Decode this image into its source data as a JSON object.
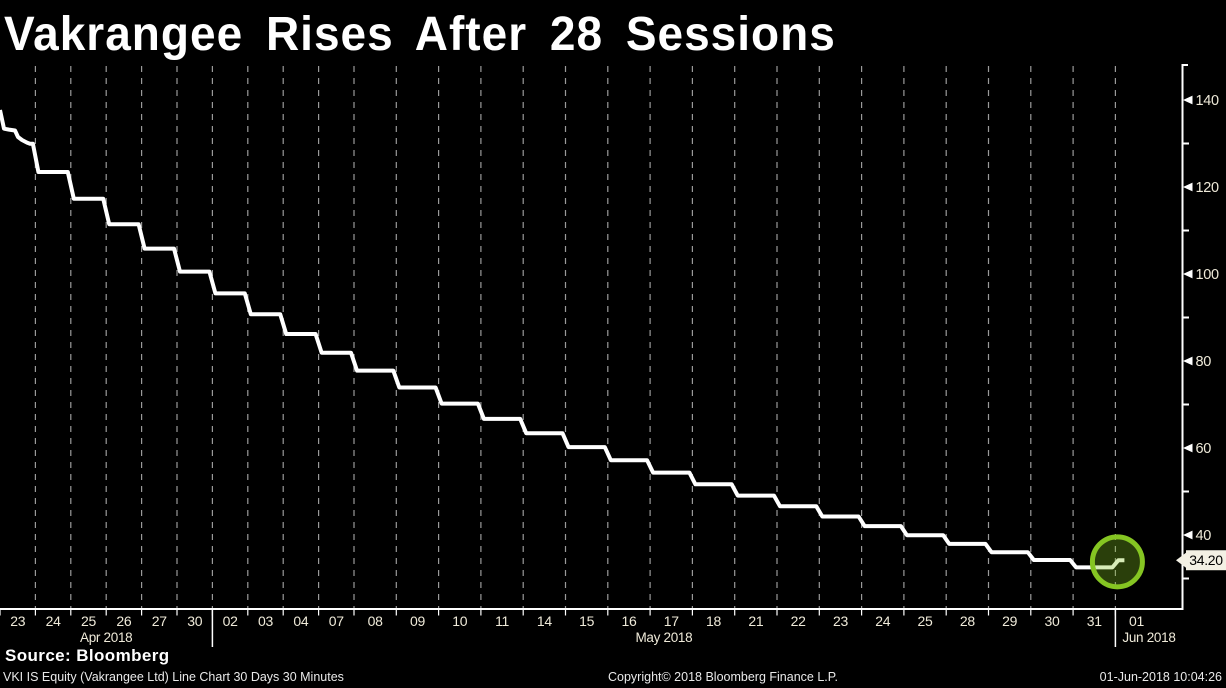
{
  "title": "Vakrangee Rises After 28 Sessions",
  "source_line": "Source: Bloomberg",
  "footer": {
    "left": "VKI IS Equity (Vakrangee Ltd) Line Chart 30 Days 30 Minutes",
    "center": "Copyright© 2018 Bloomberg Finance L.P.",
    "right": "01-Jun-2018 10:04:26"
  },
  "colors": {
    "background": "#000000",
    "line": "#ffffff",
    "grid": "#9a9a9a",
    "axis": "#ffffff",
    "tick_label": "#efead9",
    "highlight_ring": "#85c522",
    "highlight_fill": "rgba(130,196,34,0.32)",
    "price_tag_bg": "#f3f0e4",
    "price_tag_text": "#000000"
  },
  "chart_data": {
    "type": "line",
    "title": "Vakrangee Rises After 28 Sessions",
    "grid": "vertical dashed line at each trading-day boundary, no horizontal gridlines",
    "legend": "none",
    "y_axis": {
      "side": "right",
      "major_ticks": [
        140,
        120,
        100,
        80,
        60,
        40
      ],
      "minor_ticks": [
        130,
        110,
        90,
        70,
        50,
        30
      ],
      "last_price_tag": "34.20"
    },
    "x_axis": {
      "sections": [
        {
          "month": "Apr 2018",
          "days": [
            "23",
            "24",
            "25",
            "26",
            "27",
            "30"
          ]
        },
        {
          "month": "May 2018",
          "days": [
            "02",
            "03",
            "04",
            "07",
            "08",
            "09",
            "10",
            "11",
            "14",
            "15",
            "16",
            "17",
            "18",
            "21",
            "22",
            "23",
            "24",
            "25",
            "28",
            "29",
            "30",
            "31"
          ]
        },
        {
          "month": "Jun 2018",
          "days": [
            "01"
          ]
        }
      ]
    },
    "series": [
      {
        "name": "VKI IS Equity (Vakrangee Ltd) last price",
        "closes": [
          129.95,
          123.45,
          117.3,
          111.45,
          105.85,
          100.55,
          95.55,
          90.75,
          86.2,
          81.9,
          77.8,
          73.9,
          70.2,
          66.7,
          63.4,
          60.2,
          57.2,
          54.35,
          51.65,
          49.05,
          46.6,
          44.25,
          42.05,
          39.95,
          37.95,
          36.05,
          34.25,
          32.55,
          34.2
        ]
      }
    ],
    "entry_value": 137.7,
    "intro_path": [
      [
        0,
        137.7
      ],
      [
        4,
        133.4
      ],
      [
        9,
        133.2
      ],
      [
        15,
        133.0
      ],
      [
        18,
        131.5
      ],
      [
        22,
        130.8
      ],
      [
        27,
        130.2
      ],
      [
        30,
        129.95
      ]
    ],
    "last_price": 34.2,
    "highlight": {
      "type": "circle",
      "day": "01 Jun 2018",
      "value": 34.2,
      "note": "green circle marking first up-move after 28 losing sessions"
    }
  }
}
